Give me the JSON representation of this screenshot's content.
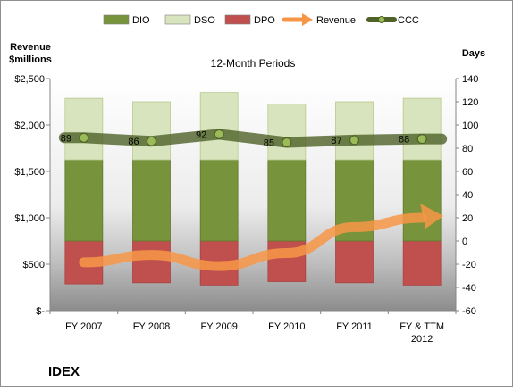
{
  "chart_data": {
    "type": "bar",
    "title": "12-Month Periods",
    "company": "IDEX",
    "left_axis_title": [
      "Revenue",
      "$millions"
    ],
    "right_axis_title": "Days",
    "categories": [
      [
        "FY 2007"
      ],
      [
        "FY 2008"
      ],
      [
        "FY 2009"
      ],
      [
        "FY 2010"
      ],
      [
        "FY 2011"
      ],
      [
        "FY & TTM",
        "2012"
      ]
    ],
    "left_axis": {
      "min": 0,
      "max": 2500,
      "ticks": [
        0,
        500,
        1000,
        1500,
        2000,
        2500
      ],
      "tick_labels": [
        "$-",
        "$500",
        "$1,000",
        "$1,500",
        "$2,000",
        "$2,500"
      ]
    },
    "right_axis": {
      "min": -60,
      "max": 140,
      "ticks": [
        -60,
        -40,
        -20,
        0,
        20,
        40,
        60,
        80,
        100,
        120,
        140
      ],
      "tick_labels": [
        "-60",
        "-40",
        "-20",
        "0",
        "20",
        "40",
        "60",
        "80",
        "100",
        "120",
        "140"
      ]
    },
    "legend": [
      {
        "key": "DIO",
        "label": "DIO",
        "kind": "bar",
        "color": "#77933c"
      },
      {
        "key": "DSO",
        "label": "DSO",
        "kind": "bar",
        "color": "#d7e4bd"
      },
      {
        "key": "DPO",
        "label": "DPO",
        "kind": "bar",
        "color": "#c0504d"
      },
      {
        "key": "Revenue",
        "label": "Revenue",
        "kind": "arrow",
        "color": "#f79646"
      },
      {
        "key": "CCC",
        "label": "CCC",
        "kind": "line-marker",
        "color": "#4f6228"
      }
    ],
    "series": {
      "DIO": [
        70,
        70,
        70,
        70,
        70,
        70
      ],
      "DSO": [
        53,
        50,
        58,
        48,
        50,
        53
      ],
      "DPO": [
        -37,
        -36,
        -38,
        -35,
        -36,
        -38
      ],
      "CCC": [
        89,
        86,
        92,
        85,
        87,
        88
      ],
      "Revenue": [
        520,
        600,
        480,
        620,
        900,
        1000
      ]
    },
    "ccc_labels": [
      "89",
      "86",
      "92",
      "85",
      "87",
      "88"
    ],
    "legend_position": "top",
    "grid": false
  }
}
